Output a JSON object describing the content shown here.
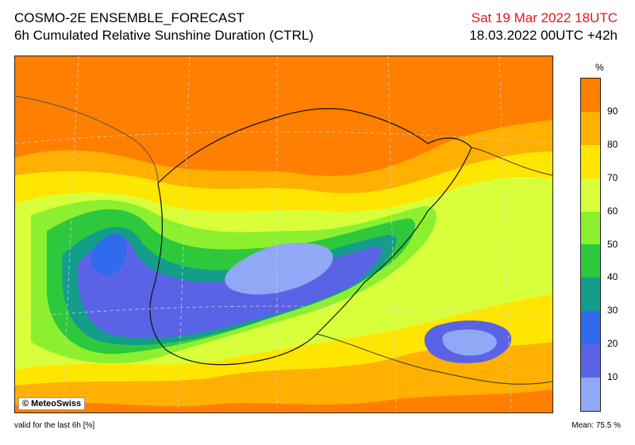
{
  "header": {
    "model": "COSMO-2E ENSEMBLE_FORECAST",
    "product": "6h Cumulated Relative Sunshine Duration (CTRL)",
    "valid_time": "Sat 19 Mar 2022 18UTC",
    "run_info": "18.03.2022 00UTC +42h"
  },
  "map": {
    "copyright": "© MeteoSwiss",
    "field_colors": {
      "over_90": "#ff7f00",
      "80_90": "#ffb000",
      "70_80": "#ffe600",
      "60_70": "#d8ff3a",
      "50_60": "#8cf030",
      "40_50": "#2ec83c",
      "30_40": "#139d8a",
      "20_30": "#2f6bec",
      "10_20": "#5a63e6",
      "0_10": "#90a8f6"
    }
  },
  "legend": {
    "unit": "%",
    "ticks": [
      "90",
      "80",
      "70",
      "60",
      "50",
      "40",
      "30",
      "20",
      "10"
    ],
    "colors": [
      "#ff7f00",
      "#ffb000",
      "#ffe600",
      "#d8ff3a",
      "#8cf030",
      "#2ec83c",
      "#139d8a",
      "#2f6bec",
      "#5a63e6",
      "#90a8f6"
    ]
  },
  "footer": {
    "validity": "valid for the last 6h [%]",
    "mean_label": "Mean:",
    "mean_value": "75.5 %"
  }
}
